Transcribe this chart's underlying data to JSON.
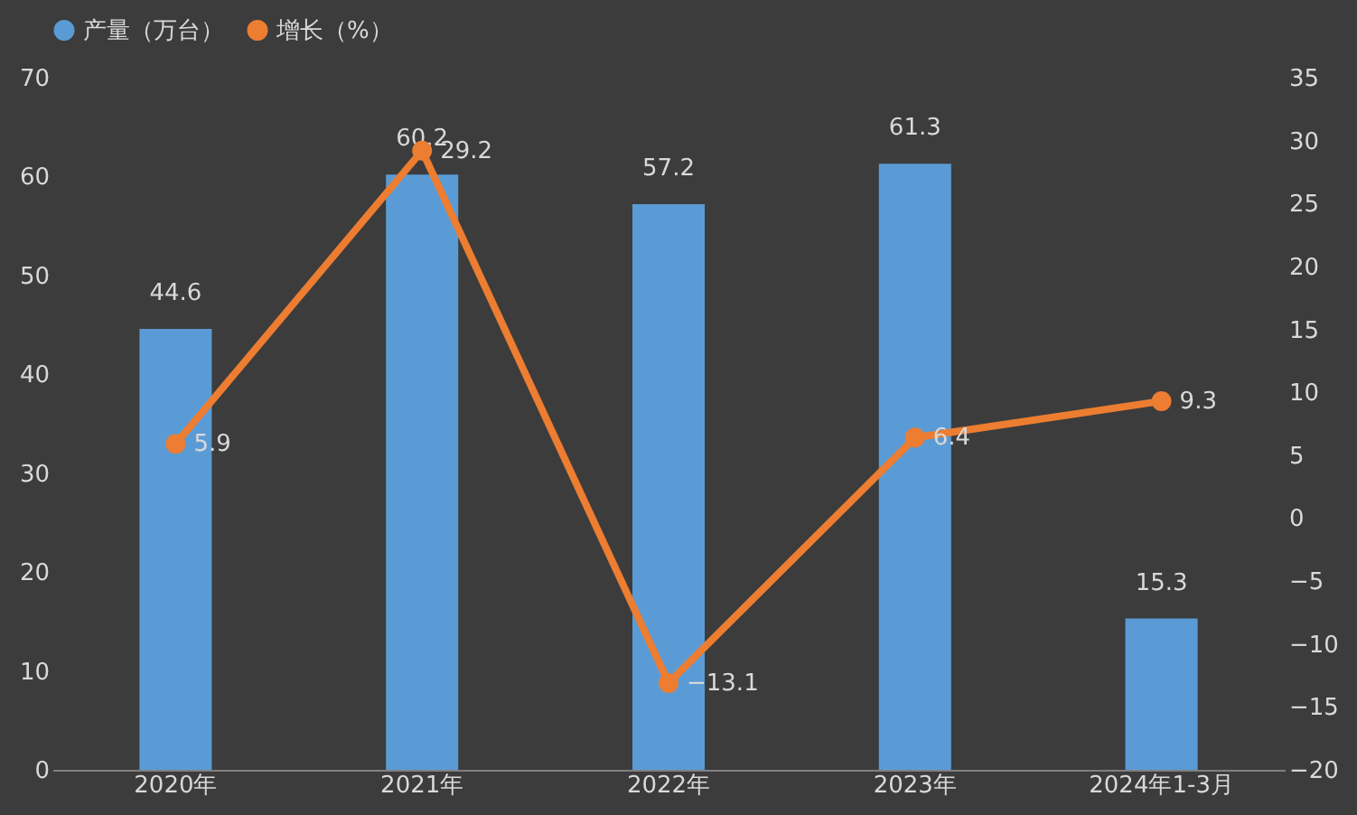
{
  "chart_data": {
    "type": "bar",
    "categories": [
      "2020年",
      "2021年",
      "2022年",
      "2023年",
      "2024年1-3月"
    ],
    "series": [
      {
        "name": "产量（万台）",
        "color": "#5b9bd5",
        "values": [
          44.6,
          60.2,
          57.2,
          61.3,
          15.3
        ]
      },
      {
        "name": "增长（%）",
        "type": "line",
        "axis": "y2",
        "color": "#ed7d31",
        "values": [
          5.9,
          29.2,
          -13.1,
          6.4,
          9.3
        ]
      }
    ],
    "ylim": [
      0,
      70
    ],
    "yticks": [
      0,
      10,
      20,
      30,
      40,
      50,
      60,
      70
    ],
    "y2lim": [
      -20,
      35
    ],
    "y2ticks": [
      -20,
      -15,
      -10,
      -5,
      0,
      5,
      10,
      15,
      20,
      25,
      30,
      35
    ],
    "data_labels": true,
    "legend": "top",
    "grid": false,
    "marker": "circle"
  }
}
